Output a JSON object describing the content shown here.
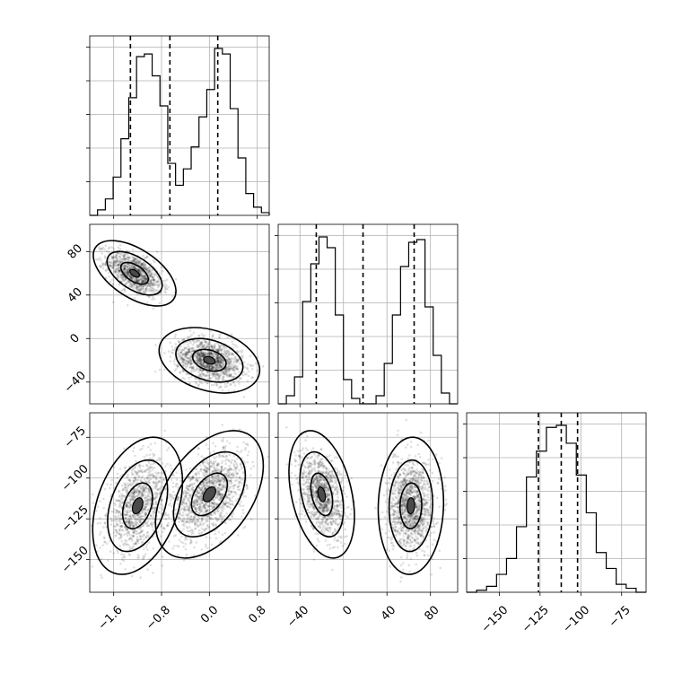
{
  "chart_data": {
    "type": "corner",
    "grid": true,
    "parameters": [
      {
        "range": [
          -2.0,
          1.0
        ],
        "ticks": [
          -1.6,
          -0.8,
          0.0,
          0.8
        ],
        "tick_labels": [
          "−1.6",
          "−0.8",
          "0.0",
          "0.8"
        ]
      },
      {
        "range": [
          -60,
          105
        ],
        "ticks": [
          -40,
          0,
          40,
          80
        ],
        "tick_labels": [
          "−40",
          "0",
          "40",
          "80"
        ]
      },
      {
        "range": [
          -170,
          -60
        ],
        "ticks": [
          -150,
          -125,
          -100,
          -75
        ],
        "tick_labels": [
          "−150",
          "−125",
          "−100",
          "−75"
        ]
      }
    ],
    "histograms": [
      {
        "param": 0,
        "quantiles": [
          -1.32,
          -0.66,
          0.14
        ],
        "counts": [
          0,
          2,
          6,
          14,
          28,
          43,
          58,
          59,
          51,
          40,
          19,
          11,
          17,
          25,
          36,
          46,
          61,
          59,
          39,
          21,
          8,
          3,
          1
        ]
      },
      {
        "param": 1,
        "quantiles": [
          -25,
          18,
          65
        ],
        "counts": [
          0,
          3,
          10,
          38,
          52,
          62,
          58,
          33,
          9,
          2,
          0,
          0,
          3,
          15,
          33,
          51,
          60,
          61,
          36,
          18,
          4,
          0
        ]
      },
      {
        "param": 2,
        "quantiles": [
          -126,
          -112,
          -102
        ],
        "counts": [
          0,
          1,
          3,
          9,
          17,
          33,
          58,
          71,
          83,
          84,
          75,
          59,
          40,
          20,
          12,
          4,
          2,
          0
        ]
      }
    ],
    "scatter_panels": [
      {
        "x_param": 0,
        "y_param": 1,
        "modes": [
          {
            "center": [
              -1.25,
              60
            ],
            "spread": [
              0.23,
              10
            ],
            "corr": -0.55,
            "n": 1100
          },
          {
            "center": [
              0.0,
              -20
            ],
            "spread": [
              0.28,
              10
            ],
            "corr": -0.3,
            "n": 1300
          }
        ]
      },
      {
        "x_param": 0,
        "y_param": 2,
        "modes": [
          {
            "center": [
              -1.2,
              -117
            ],
            "spread": [
              0.25,
              14
            ],
            "corr": 0.35,
            "n": 1100
          },
          {
            "center": [
              0.0,
              -110
            ],
            "spread": [
              0.3,
              13
            ],
            "corr": 0.45,
            "n": 1300
          }
        ]
      },
      {
        "x_param": 1,
        "y_param": 2,
        "modes": [
          {
            "center": [
              -20,
              -110
            ],
            "spread": [
              10,
              13
            ],
            "corr": -0.35,
            "n": 1100
          },
          {
            "center": [
              62,
              -117
            ],
            "spread": [
              10,
              14
            ],
            "corr": 0.05,
            "n": 1300
          }
        ]
      }
    ]
  }
}
